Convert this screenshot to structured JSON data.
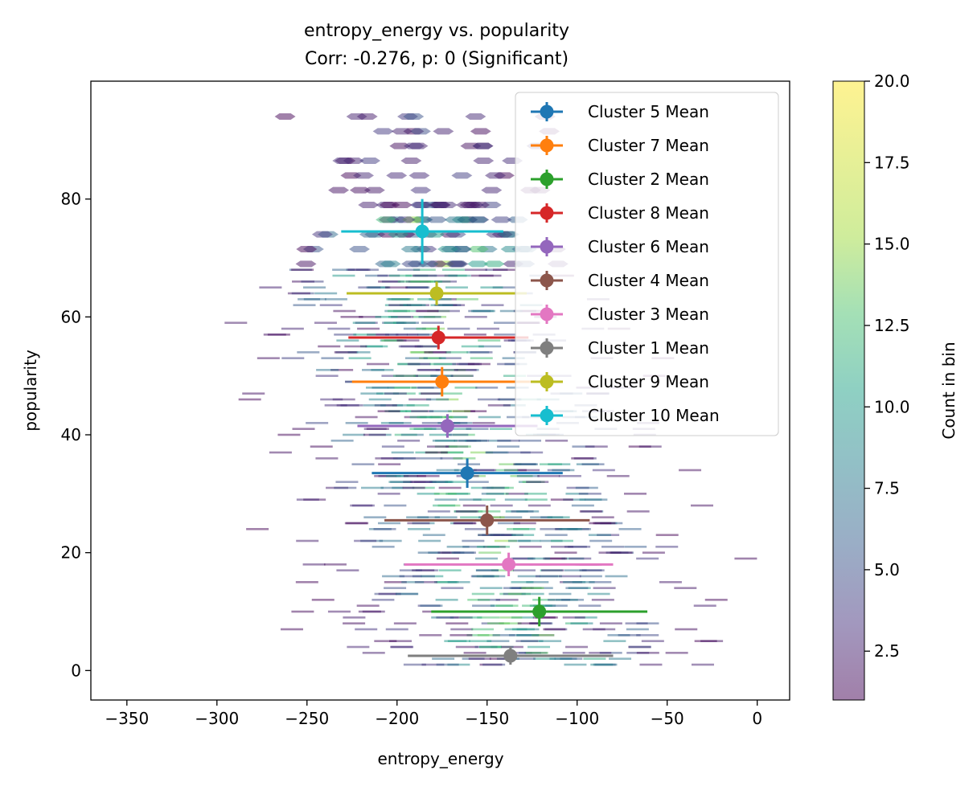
{
  "chart_data": {
    "type": "scatter",
    "title": "entropy_energy vs. popularity",
    "subtitle": "Corr: -0.276, p: 0 (Significant)",
    "xlabel": "entropy_energy",
    "ylabel": "popularity",
    "xlim": [
      -370,
      18
    ],
    "ylim": [
      -5,
      100
    ],
    "x_ticks": [
      -350,
      -300,
      -250,
      -200,
      -150,
      -100,
      -50,
      0
    ],
    "x_tick_labels": [
      "−350",
      "−300",
      "−250",
      "−200",
      "−150",
      "−100",
      "−50",
      "0"
    ],
    "y_ticks": [
      0,
      20,
      40,
      60,
      80
    ],
    "y_tick_labels": [
      "0",
      "20",
      "40",
      "60",
      "80"
    ],
    "grid": false,
    "legend_position": "top-right",
    "background": "hexbin density of samples",
    "colorbar": {
      "label": "Count in bin",
      "range": [
        1,
        20
      ],
      "ticks": [
        2.5,
        5.0,
        7.5,
        10.0,
        12.5,
        15.0,
        17.5,
        20.0
      ],
      "tick_labels": [
        "2.5",
        "5.0",
        "7.5",
        "10.0",
        "12.5",
        "15.0",
        "17.5",
        "20.0"
      ],
      "colormap": "viridis",
      "alpha": 0.5
    },
    "series": [
      {
        "name": "Cluster 5 Mean",
        "color": "#1f77b4",
        "x": -161,
        "y": 33.5,
        "xerr": 53,
        "yerr": 2.5
      },
      {
        "name": "Cluster 7 Mean",
        "color": "#ff7f0e",
        "x": -175,
        "y": 49,
        "xerr": 50,
        "yerr": 2.5
      },
      {
        "name": "Cluster 2 Mean",
        "color": "#2ca02c",
        "x": -121,
        "y": 10,
        "xerr": 60,
        "yerr": 2.5
      },
      {
        "name": "Cluster 8 Mean",
        "color": "#d62728",
        "x": -177,
        "y": 56.5,
        "xerr": 50,
        "yerr": 2
      },
      {
        "name": "Cluster 6 Mean",
        "color": "#9467bd",
        "x": -172,
        "y": 41.5,
        "xerr": 50,
        "yerr": 2
      },
      {
        "name": "Cluster 4 Mean",
        "color": "#8c564b",
        "x": -150,
        "y": 25.5,
        "xerr": 57,
        "yerr": 2.5
      },
      {
        "name": "Cluster 3 Mean",
        "color": "#e377c2",
        "x": -138,
        "y": 18,
        "xerr": 58,
        "yerr": 2
      },
      {
        "name": "Cluster 1 Mean",
        "color": "#7f7f7f",
        "x": -137,
        "y": 2.5,
        "xerr": 57,
        "yerr": 1.5
      },
      {
        "name": "Cluster 9 Mean",
        "color": "#bcbd22",
        "x": -178,
        "y": 64,
        "xerr": 50,
        "yerr": 2
      },
      {
        "name": "Cluster 10 Mean",
        "color": "#17becf",
        "x": -186,
        "y": 74.5,
        "xerr": 45,
        "yerr": 5.5
      }
    ]
  }
}
